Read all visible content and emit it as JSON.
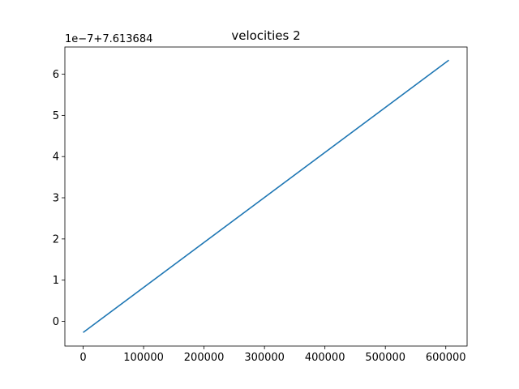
{
  "chart_data": {
    "type": "line",
    "title": "velocities 2",
    "xlabel": "",
    "ylabel": "",
    "y_offset_label": "1e−7+7.613684",
    "xlim": [
      -30250,
      635250
    ],
    "ylim": [
      -0.6,
      6.66
    ],
    "x_ticks": [
      0,
      100000,
      200000,
      300000,
      400000,
      500000,
      600000
    ],
    "x_tick_labels": [
      "0",
      "100000",
      "200000",
      "300000",
      "400000",
      "500000",
      "600000"
    ],
    "y_ticks": [
      0,
      1,
      2,
      3,
      4,
      5,
      6
    ],
    "y_tick_labels": [
      "0",
      "1",
      "2",
      "3",
      "4",
      "5",
      "6"
    ],
    "grid": false,
    "series": [
      {
        "color": "#1f77b4",
        "x": [
          0,
          605000
        ],
        "y": [
          -0.27,
          6.34
        ]
      }
    ]
  }
}
